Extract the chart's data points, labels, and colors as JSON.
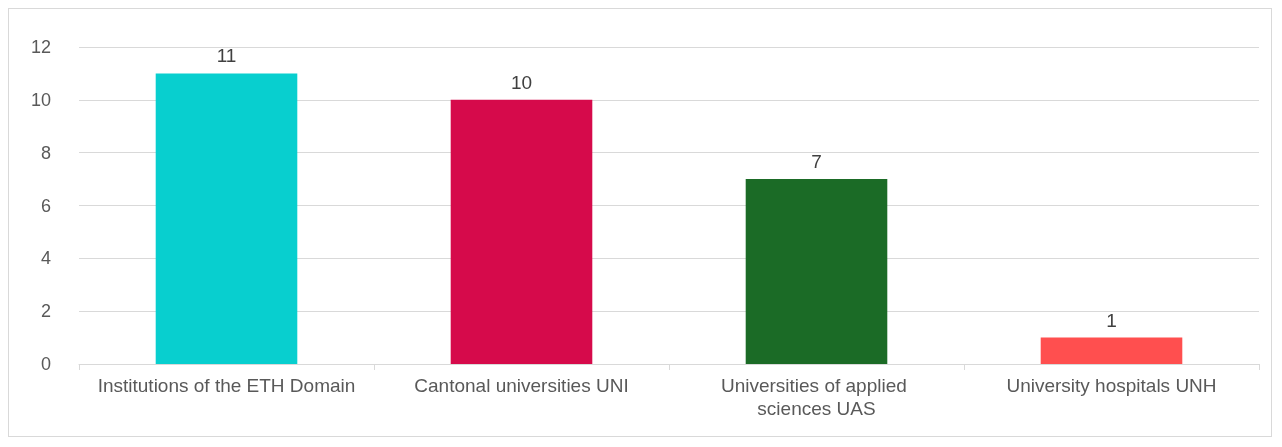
{
  "chart_data": {
    "type": "bar",
    "categories": [
      "Institutions of the ETH Domain",
      "Cantonal universities UNI",
      "Universities of applied sciences UAS",
      "University hospitals UNH"
    ],
    "values": [
      11,
      10,
      7,
      1
    ],
    "colors": [
      "#08cfcf",
      "#d60a4b",
      "#1b6b26",
      "#ff4f4f"
    ],
    "ylim": [
      0,
      12
    ],
    "yticks": [
      0,
      2,
      4,
      6,
      8,
      10,
      12
    ],
    "grid": "y",
    "data_labels": true
  }
}
